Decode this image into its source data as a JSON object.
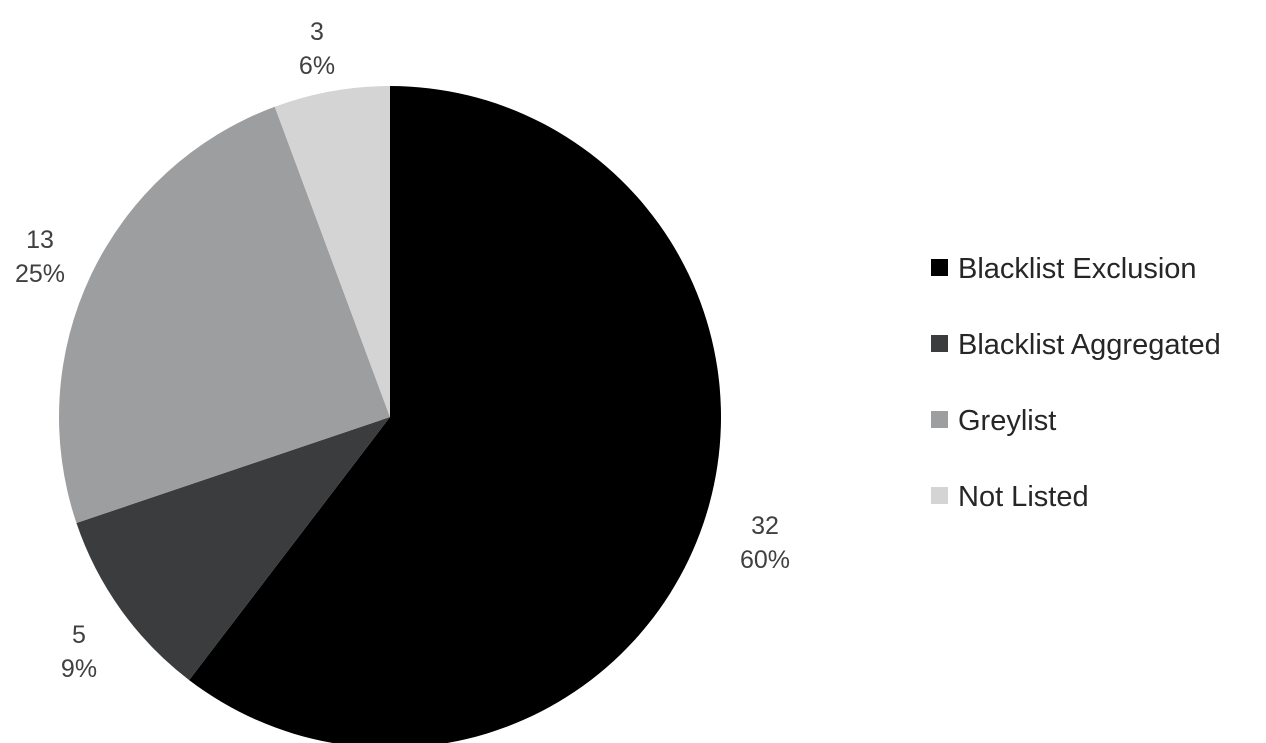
{
  "chart_data": {
    "type": "pie",
    "categories": [
      "Blacklist Exclusion",
      "Blacklist  Aggregated",
      "Greylist",
      "Not Listed"
    ],
    "values": [
      32,
      5,
      13,
      3
    ],
    "percent_labels": [
      "60%",
      "9%",
      "25%",
      "6%"
    ],
    "colors": [
      "#000000",
      "#3a3c3e",
      "#9d9e9f",
      "#d3d4d3"
    ],
    "start_angle": "12 o'clock",
    "direction": "clockwise",
    "legend_position": "right"
  }
}
